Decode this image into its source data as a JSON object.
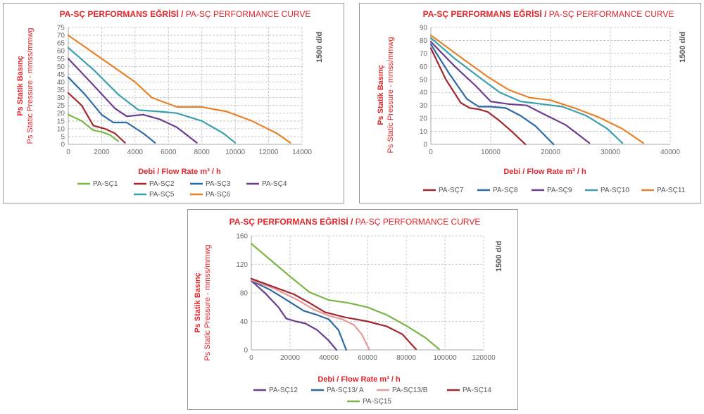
{
  "chart_data": [
    {
      "type": "line",
      "title_bold": "PA-SÇ PERFORMANS EĞRİSİ /",
      "title_light": "PA-SÇ PERFORMANCE CURVE",
      "ylabel_bold": "Ps Statik Basınç",
      "ylabel_light": "Ps Static Pressure - mmss/mmwg",
      "xlabel": "Debi / Flow Rate m³ / h",
      "speed_label": "1500 d/d",
      "xlim": [
        0,
        14000
      ],
      "ylim": [
        0,
        75
      ],
      "xticks": [
        "0",
        "2000",
        "4000",
        "6000",
        "8000",
        "10000",
        "12000",
        "14000"
      ],
      "yticks": [
        "0",
        "5",
        "10",
        "15",
        "20",
        "25",
        "30",
        "35",
        "40",
        "45",
        "50",
        "55",
        "60",
        "65",
        "70",
        "75"
      ],
      "grid": true,
      "legend_position": "bottom",
      "series": [
        {
          "name": "PA-SÇ1",
          "color": "#7ab648",
          "x": [
            0,
            800,
            1500,
            2000,
            2500,
            3000
          ],
          "y": [
            19,
            15,
            9,
            8,
            6,
            2
          ]
        },
        {
          "name": "PA-SÇ2",
          "color": "#a3272e",
          "x": [
            0,
            800,
            1500,
            2200,
            2800,
            3400
          ],
          "y": [
            33,
            25,
            12,
            10,
            7,
            1
          ]
        },
        {
          "name": "PA-SÇ3",
          "color": "#2b6aa3",
          "x": [
            0,
            1000,
            2000,
            2700,
            3500,
            4500,
            5200
          ],
          "y": [
            43,
            32,
            19,
            14,
            14,
            7,
            1
          ]
        },
        {
          "name": "PA-SÇ4",
          "color": "#6a3d8f",
          "x": [
            0,
            1500,
            2800,
            3500,
            4500,
            5500,
            6500,
            7700
          ],
          "y": [
            55,
            38,
            23,
            18,
            19,
            16,
            11,
            1
          ]
        },
        {
          "name": "PA-SÇ5",
          "color": "#3aa0ae",
          "x": [
            0,
            1500,
            3000,
            4200,
            5500,
            6500,
            8000,
            9300,
            10000
          ],
          "y": [
            62,
            48,
            32,
            22,
            21,
            20,
            15,
            7,
            1
          ]
        },
        {
          "name": "PA-SÇ6",
          "color": "#e8822a",
          "x": [
            0,
            2000,
            4000,
            5000,
            6500,
            8000,
            9500,
            11000,
            12500,
            13300
          ],
          "y": [
            70,
            55,
            40,
            30,
            24,
            24,
            21,
            15,
            7,
            1
          ]
        }
      ]
    },
    {
      "type": "line",
      "title_bold": "PA-SÇ PERFORMANS EĞRİSİ /",
      "title_light": "PA-SÇ PERFORMANCE CURVE",
      "ylabel_bold": "Ps Statik Basınç",
      "ylabel_light": "Ps Static Pressure - mmss/mmwg",
      "xlabel": "Debi / Flow Rate m³ / h",
      "speed_label": "1500 d/d",
      "xlim": [
        0,
        40000
      ],
      "ylim": [
        0,
        90
      ],
      "xticks": [
        "0",
        "10000",
        "20000",
        "30000",
        "40000"
      ],
      "yticks": [
        "0",
        "10",
        "20",
        "30",
        "40",
        "50",
        "60",
        "70",
        "80",
        "90"
      ],
      "grid": true,
      "legend_position": "bottom",
      "series": [
        {
          "name": "PA-SÇ7",
          "color": "#a3272e",
          "x": [
            0,
            2500,
            5000,
            6500,
            8000,
            9500,
            11500,
            13500,
            15800
          ],
          "y": [
            74,
            50,
            32,
            28,
            27,
            25,
            18,
            10,
            0
          ]
        },
        {
          "name": "PA-SÇ8",
          "color": "#2b6aa3",
          "x": [
            0,
            3000,
            6000,
            8000,
            10000,
            12500,
            15000,
            17500,
            20500
          ],
          "y": [
            77,
            55,
            35,
            29,
            29,
            28,
            22,
            14,
            0
          ]
        },
        {
          "name": "PA-SÇ9",
          "color": "#6a3d8f",
          "x": [
            0,
            4000,
            7500,
            10000,
            13000,
            16000,
            19000,
            22500,
            26500
          ],
          "y": [
            79,
            60,
            45,
            33,
            31,
            30,
            23,
            15,
            1
          ]
        },
        {
          "name": "PA-SÇ10",
          "color": "#3aa0ae",
          "x": [
            0,
            4000,
            8000,
            11500,
            15000,
            18500,
            22000,
            26000,
            29500,
            32000
          ],
          "y": [
            82,
            66,
            52,
            40,
            33,
            31,
            29,
            22,
            12,
            1
          ]
        },
        {
          "name": "PA-SÇ11",
          "color": "#e8822a",
          "x": [
            0,
            5000,
            9500,
            13000,
            16500,
            20000,
            24000,
            28000,
            32000,
            35500
          ],
          "y": [
            84,
            67,
            52,
            42,
            36,
            34,
            28,
            21,
            12,
            1
          ]
        }
      ]
    },
    {
      "type": "line",
      "title_bold": "PA-SÇ PERFORMANS EĞRİSİ /",
      "title_light": "PA-SÇ PERFORMANCE CURVE",
      "ylabel_bold": "Ps Statik Basınç",
      "ylabel_light": "Ps Static Pressure - mmss/mmwg",
      "xlabel": "Debi / Flow Rate m³ / h",
      "speed_label": "1500 d/d",
      "xlim": [
        0,
        120000
      ],
      "ylim": [
        0,
        160
      ],
      "xticks": [
        "0",
        "20000",
        "40000",
        "60000",
        "80000",
        "100000",
        "120000"
      ],
      "yticks": [
        "0",
        "40",
        "80",
        "120",
        "160"
      ],
      "grid": true,
      "legend_position": "bottom",
      "series": [
        {
          "name": "PA-SÇ12",
          "color": "#6a3d8f",
          "x": [
            0,
            7000,
            14000,
            18000,
            23000,
            28000,
            34000,
            40000,
            44000
          ],
          "y": [
            97,
            80,
            60,
            44,
            40,
            37,
            28,
            13,
            0
          ]
        },
        {
          "name": "PA-SÇ13/ A",
          "color": "#2b6aa3",
          "x": [
            0,
            10000,
            20000,
            27000,
            33000,
            40000,
            45000,
            49000
          ],
          "y": [
            97,
            84,
            67,
            55,
            50,
            43,
            28,
            0
          ]
        },
        {
          "name": "PA-SÇ13/B",
          "color": "#e8999a",
          "x": [
            0,
            12000,
            24000,
            32000,
            40000,
            47000,
            53000,
            57000,
            61000
          ],
          "y": [
            98,
            86,
            70,
            57,
            48,
            43,
            35,
            22,
            0
          ]
        },
        {
          "name": "PA-SÇ14",
          "color": "#a3272e",
          "x": [
            0,
            10000,
            22000,
            30000,
            38000,
            48000,
            60000,
            70000,
            78000,
            85000
          ],
          "y": [
            100,
            90,
            78,
            66,
            53,
            46,
            40,
            33,
            22,
            1
          ]
        },
        {
          "name": "PA-SÇ15",
          "color": "#7ab648",
          "x": [
            0,
            10000,
            20000,
            30000,
            40000,
            50000,
            60000,
            70000,
            80000,
            90000,
            97000
          ],
          "y": [
            149,
            126,
            103,
            81,
            70,
            66,
            60,
            49,
            34,
            17,
            1
          ]
        }
      ]
    }
  ]
}
